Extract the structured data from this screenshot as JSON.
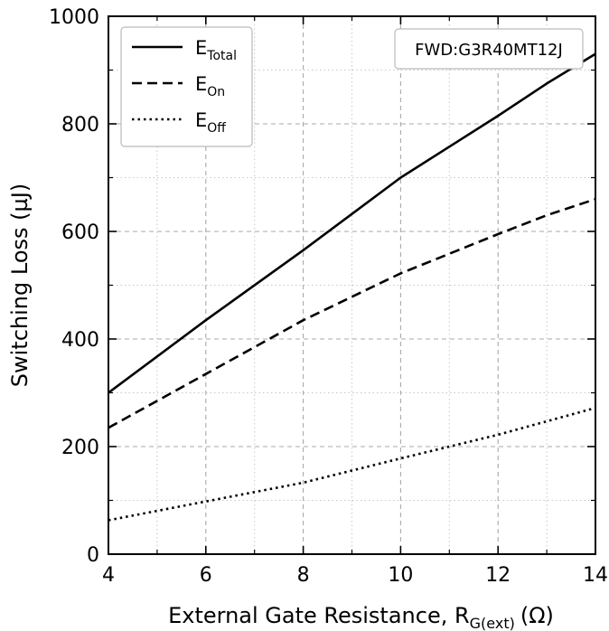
{
  "chart_data": {
    "type": "line",
    "title": "",
    "xlabel": "External Gate Resistance, R",
    "xlabel_sub": "G(ext)",
    "xlabel_unit": "(Ω)",
    "ylabel": "Switching Loss (µJ)",
    "xlim": [
      4,
      14
    ],
    "ylim": [
      0,
      1000
    ],
    "x_ticks": [
      4,
      6,
      8,
      10,
      12,
      14
    ],
    "y_ticks": [
      0,
      200,
      400,
      600,
      800,
      1000
    ],
    "x_minor_step": 1,
    "y_minor_step": 100,
    "grid": true,
    "legend_position": "top-left",
    "annotation": "FWD:G3R40MT12J",
    "series": [
      {
        "name": "E",
        "name_sub": "Total",
        "style": "solid",
        "x": [
          4,
          6,
          8,
          10,
          12,
          13,
          14
        ],
        "y": [
          300,
          435,
          565,
          700,
          815,
          875,
          930
        ]
      },
      {
        "name": "E",
        "name_sub": "On",
        "style": "dashed",
        "x": [
          4,
          6,
          8,
          10,
          12,
          13,
          14
        ],
        "y": [
          235,
          335,
          435,
          522,
          595,
          630,
          660
        ]
      },
      {
        "name": "E",
        "name_sub": "Off",
        "style": "dotted",
        "x": [
          4,
          6,
          8,
          10,
          12,
          14
        ],
        "y": [
          63,
          98,
          133,
          178,
          222,
          272
        ]
      }
    ]
  }
}
